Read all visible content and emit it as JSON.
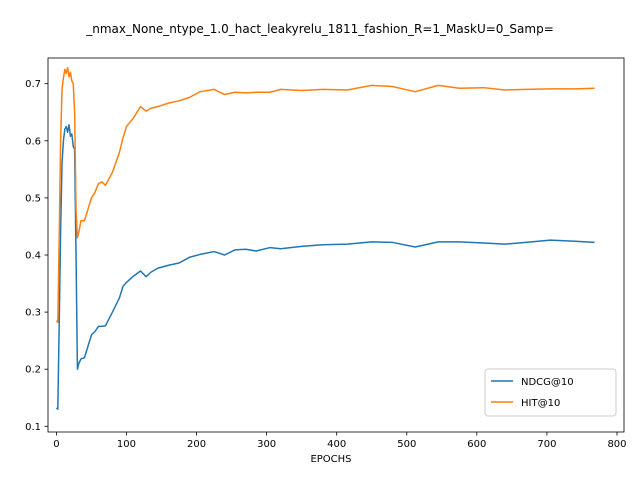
{
  "chart_data": {
    "type": "line",
    "title": "_nmax_None_ntype_1.0_hact_leakyrelu_1811_fashion_R=1_MaskU=0_Samp=",
    "xlabel": "EPOCHS",
    "ylabel": "",
    "xlim": [
      -12,
      810
    ],
    "ylim": [
      0.09,
      0.745
    ],
    "xticks": [
      0,
      100,
      200,
      300,
      400,
      500,
      600,
      700,
      800
    ],
    "yticks": [
      0.1,
      0.2,
      0.3,
      0.4,
      0.5,
      0.6,
      0.7
    ],
    "grid": false,
    "legend_position": "lower-right",
    "series": [
      {
        "name": "NDCG@10",
        "color": "#1f77b4",
        "x": [
          0,
          2,
          4,
          6,
          8,
          10,
          12,
          14,
          16,
          18,
          20,
          22,
          24,
          26,
          28,
          30,
          32,
          35,
          40,
          45,
          50,
          55,
          60,
          65,
          70,
          80,
          90,
          95,
          100,
          110,
          120,
          128,
          135,
          145,
          160,
          175,
          190,
          205,
          225,
          240,
          255,
          270,
          285,
          305,
          320,
          350,
          380,
          415,
          450,
          480,
          512,
          545,
          575,
          610,
          640,
          670,
          705,
          740,
          768
        ],
        "y": [
          0.132,
          0.13,
          0.28,
          0.44,
          0.56,
          0.6,
          0.62,
          0.625,
          0.615,
          0.628,
          0.608,
          0.612,
          0.59,
          0.585,
          0.4,
          0.2,
          0.21,
          0.218,
          0.22,
          0.24,
          0.26,
          0.266,
          0.275,
          0.275,
          0.276,
          0.3,
          0.325,
          0.345,
          0.352,
          0.363,
          0.372,
          0.362,
          0.37,
          0.377,
          0.382,
          0.386,
          0.396,
          0.401,
          0.406,
          0.4,
          0.409,
          0.41,
          0.407,
          0.413,
          0.411,
          0.415,
          0.418,
          0.419,
          0.423,
          0.422,
          0.414,
          0.423,
          0.423,
          0.421,
          0.419,
          0.422,
          0.426,
          0.424,
          0.422
        ]
      },
      {
        "name": "HIT@10",
        "color": "#ff7f0e",
        "x": [
          0,
          2,
          4,
          6,
          8,
          10,
          12,
          14,
          16,
          18,
          20,
          22,
          24,
          26,
          28,
          30,
          32,
          35,
          40,
          45,
          50,
          55,
          60,
          65,
          70,
          80,
          90,
          95,
          100,
          110,
          120,
          128,
          135,
          145,
          160,
          175,
          190,
          205,
          225,
          240,
          255,
          270,
          285,
          305,
          320,
          350,
          380,
          415,
          450,
          480,
          512,
          545,
          575,
          610,
          640,
          670,
          705,
          740,
          768
        ],
        "y": [
          0.285,
          0.282,
          0.43,
          0.6,
          0.69,
          0.71,
          0.725,
          0.718,
          0.728,
          0.712,
          0.72,
          0.705,
          0.7,
          0.65,
          0.48,
          0.43,
          0.44,
          0.46,
          0.46,
          0.48,
          0.5,
          0.51,
          0.525,
          0.528,
          0.522,
          0.545,
          0.58,
          0.605,
          0.625,
          0.64,
          0.66,
          0.652,
          0.657,
          0.66,
          0.666,
          0.67,
          0.676,
          0.686,
          0.69,
          0.681,
          0.685,
          0.684,
          0.685,
          0.685,
          0.69,
          0.688,
          0.69,
          0.689,
          0.697,
          0.695,
          0.686,
          0.697,
          0.692,
          0.693,
          0.689,
          0.69,
          0.691,
          0.691,
          0.692
        ]
      }
    ]
  }
}
